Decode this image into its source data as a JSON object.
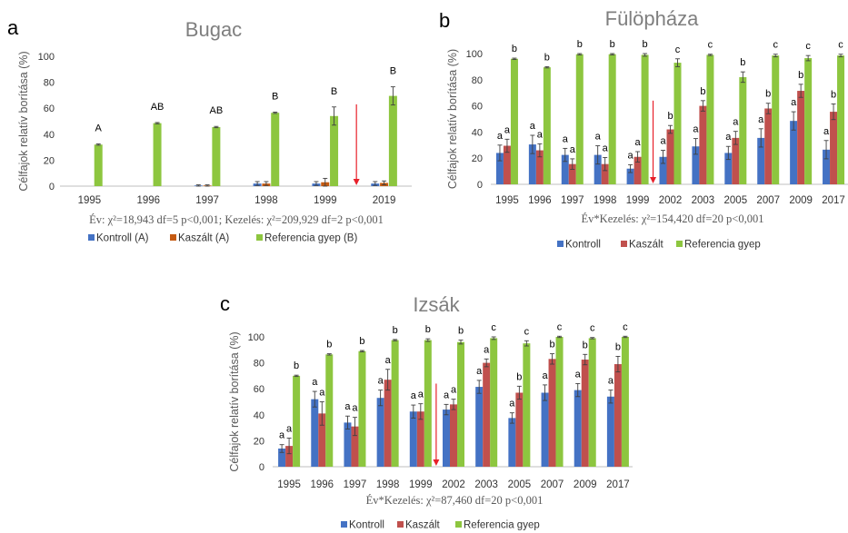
{
  "colors": {
    "kontroll": "#4472C4",
    "kaszalt_a": "#C55A11",
    "kaszalt": "#C0504D",
    "referencia": "#8DC63F",
    "arrow": "#E8202A"
  },
  "chart_data": [
    {
      "type": "bar",
      "panel": "a",
      "title": "Bugac",
      "ylabel": "Célfajok relatív borítása (%)",
      "ylim": [
        0,
        100
      ],
      "yticks": [
        "0",
        "20",
        "40",
        "60",
        "80",
        "100"
      ],
      "categories": [
        "1995",
        "1996",
        "1997",
        "1998",
        "1999",
        "2019"
      ],
      "series": [
        {
          "name": "Kontroll (A)",
          "values": [
            0,
            0,
            0.5,
            2,
            2,
            2
          ],
          "errors": [
            0,
            0,
            0.5,
            1.5,
            1.5,
            1.5
          ]
        },
        {
          "name": "Kaszált (A)",
          "values": [
            0,
            0,
            0.5,
            2,
            3,
            2.5
          ],
          "errors": [
            0,
            0,
            0.5,
            1.5,
            3,
            1.5
          ]
        },
        {
          "name": "Referencia gyep (B)",
          "values": [
            32,
            48.5,
            45.5,
            56.5,
            54,
            69.5
          ],
          "errors": [
            0.5,
            0.5,
            0.5,
            0.5,
            7,
            7
          ]
        }
      ],
      "significance": [
        [
          "A"
        ],
        [
          "AB"
        ],
        [
          "AB"
        ],
        [
          "B"
        ],
        [
          "B"
        ],
        [
          "B"
        ]
      ],
      "arrow_after_category": 4,
      "stat_text": "Év: χ²=18,943 df=5 p<0,001; Kezelés: χ²=209,929 df=2 p<0,001",
      "legend_position": "bottom"
    },
    {
      "type": "bar",
      "panel": "b",
      "title": "Fülöpháza",
      "ylabel": "Célfajok relatív borítása (%)",
      "ylim": [
        0,
        100
      ],
      "yticks": [
        "0",
        "20",
        "40",
        "60",
        "80",
        "100"
      ],
      "categories": [
        "1995",
        "1996",
        "1997",
        "1998",
        "1999",
        "2002",
        "2003",
        "2005",
        "2007",
        "2009",
        "2017"
      ],
      "series": [
        {
          "name": "Kontroll",
          "values": [
            24,
            30.5,
            22.5,
            22.5,
            12,
            21,
            29,
            24,
            35.5,
            48.5,
            26.5
          ],
          "errors": [
            6,
            7,
            5,
            7,
            3,
            5,
            6,
            5,
            7,
            7,
            7
          ]
        },
        {
          "name": "Kaszált",
          "values": [
            29.5,
            26,
            15.5,
            15.5,
            21,
            42,
            60,
            35.5,
            58,
            71.5,
            55.5
          ],
          "errors": [
            5,
            5,
            4,
            5,
            4,
            3,
            4,
            5,
            4,
            5,
            6
          ]
        },
        {
          "name": "Referencia gyep",
          "values": [
            96,
            89.5,
            99.5,
            99.5,
            99,
            93,
            99,
            82,
            98.5,
            96.5,
            98.5
          ],
          "errors": [
            0.5,
            0.5,
            0.5,
            0.5,
            1,
            3,
            0.5,
            4,
            1,
            2,
            1
          ]
        }
      ],
      "significance": [
        [
          "a",
          "a",
          "b"
        ],
        [
          "a",
          "a",
          "b"
        ],
        [
          "a",
          "a",
          "b"
        ],
        [
          "a",
          "a",
          "b"
        ],
        [
          "a",
          "a",
          "b"
        ],
        [
          "a",
          "b",
          "c"
        ],
        [
          "a",
          "b",
          "c"
        ],
        [
          "a",
          "a",
          "b"
        ],
        [
          "a",
          "b",
          "c"
        ],
        [
          "a",
          "b",
          "c"
        ],
        [
          "a",
          "b",
          "c"
        ]
      ],
      "arrow_after_category": 4,
      "stat_text": "Év*Kezelés: χ²=154,420 df=20 p<0,001",
      "legend_position": "bottom"
    },
    {
      "type": "bar",
      "panel": "c",
      "title": "Izsák",
      "ylabel": "Célfajok relatív borítása (%)",
      "ylim": [
        0,
        100
      ],
      "yticks": [
        "0",
        "20",
        "40",
        "60",
        "80",
        "100"
      ],
      "categories": [
        "1995",
        "1996",
        "1997",
        "1998",
        "1999",
        "2002",
        "2003",
        "2005",
        "2007",
        "2009",
        "2017"
      ],
      "series": [
        {
          "name": "Kontroll",
          "values": [
            14,
            52,
            34,
            53,
            42.5,
            44,
            61.5,
            37.5,
            57,
            59,
            54
          ],
          "errors": [
            3,
            6,
            5,
            6,
            5,
            4,
            5,
            4,
            6,
            5,
            5
          ]
        },
        {
          "name": "Kaszált",
          "values": [
            16,
            41,
            31,
            67,
            42.5,
            48,
            80,
            57,
            83,
            82.5,
            79
          ],
          "errors": [
            6,
            9,
            7,
            8,
            6,
            4,
            3,
            5,
            4,
            4,
            6
          ]
        },
        {
          "name": "Referencia gyep",
          "values": [
            70,
            86.5,
            89,
            97.5,
            97.5,
            96,
            99,
            95,
            100,
            99,
            100
          ],
          "errors": [
            0.5,
            0.5,
            0.5,
            0.5,
            1,
            1.5,
            1,
            2,
            0.5,
            0.5,
            0.5
          ]
        }
      ],
      "significance": [
        [
          "a",
          "a",
          "b"
        ],
        [
          "a",
          "a",
          "b"
        ],
        [
          "a",
          "a",
          "b"
        ],
        [
          "a",
          "a",
          "b"
        ],
        [
          "a",
          "a",
          "b"
        ],
        [
          "a",
          "a",
          "b"
        ],
        [
          "a",
          "a",
          "c"
        ],
        [
          "a",
          "b",
          "c"
        ],
        [
          "a",
          "b",
          "c"
        ],
        [
          "a",
          "b",
          "c"
        ],
        [
          "a",
          "b",
          "c"
        ]
      ],
      "arrow_after_category": 4,
      "stat_text": "Év*Kezelés: χ²=87,460 df=20 p<0,001",
      "legend_position": "bottom"
    }
  ]
}
